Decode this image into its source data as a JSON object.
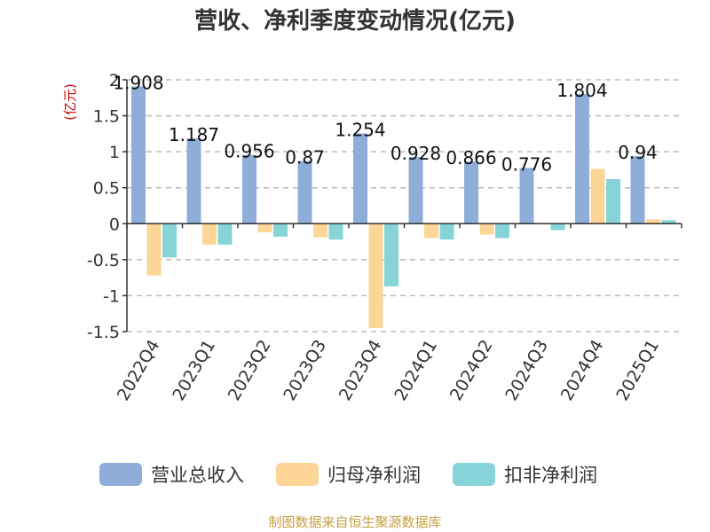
{
  "chart_data": {
    "type": "bar",
    "title": "营收、净利季度变动情况(亿元)",
    "unit_label": "(亿元)",
    "categories": [
      "2022Q4",
      "2023Q1",
      "2023Q2",
      "2023Q3",
      "2023Q4",
      "2024Q1",
      "2024Q2",
      "2024Q3",
      "2024Q4",
      "2025Q1"
    ],
    "series": [
      {
        "name": "营业总收入",
        "color": "#8fadd9",
        "values": [
          1.908,
          1.187,
          0.956,
          0.87,
          1.254,
          0.928,
          0.866,
          0.776,
          1.804,
          0.94
        ],
        "labels": [
          "1.908",
          "1.187",
          "0.956",
          "0.87",
          "1.254",
          "0.928",
          "0.866",
          "0.776",
          "1.804",
          "0.94"
        ]
      },
      {
        "name": "归母净利润",
        "color": "#fdd597",
        "values": [
          -0.72,
          -0.29,
          -0.12,
          -0.19,
          -1.45,
          -0.2,
          -0.15,
          -0.01,
          0.76,
          0.06
        ]
      },
      {
        "name": "扣非净利润",
        "color": "#86d4d8",
        "values": [
          -0.47,
          -0.29,
          -0.18,
          -0.22,
          -0.87,
          -0.22,
          -0.2,
          -0.09,
          0.62,
          0.05
        ]
      }
    ],
    "ylim": [
      -1.5,
      2
    ],
    "yticks": [
      "2",
      "1.5",
      "1",
      "0.5",
      "0",
      "-0.5",
      "-1",
      "-1.5"
    ],
    "grid": true,
    "legend_position": "bottom"
  },
  "footer": {
    "source": "制图数据来自恒生聚源数据库"
  }
}
